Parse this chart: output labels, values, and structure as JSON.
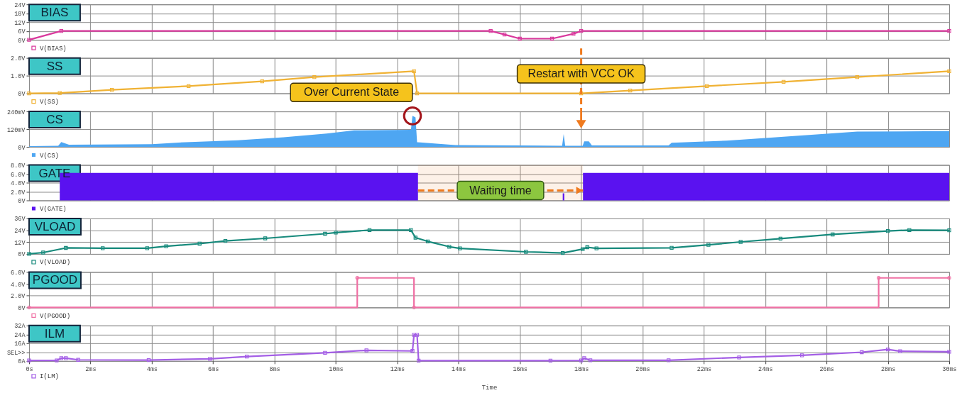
{
  "chart_data": [
    {
      "type": "line",
      "title": "BIAS",
      "x": [
        0,
        1.05,
        15.05,
        15.5,
        16.0,
        17.05,
        17.75,
        18.0,
        30
      ],
      "series": [
        {
          "name": "V(BIAS)",
          "color": "#d9389c",
          "values": [
            0,
            6,
            6,
            3.6,
            0.8,
            0.8,
            4.1,
            6,
            6
          ]
        }
      ],
      "xlim": [
        0,
        30
      ],
      "xticks": [
        0,
        2,
        4,
        6,
        8,
        10,
        12,
        14,
        16,
        18,
        20,
        22,
        24,
        26,
        28,
        30
      ],
      "ylim": [
        0,
        24
      ],
      "yticks": [
        {
          "value": 0,
          "label": "0V"
        },
        {
          "value": 6,
          "label": "6V"
        },
        {
          "value": 12,
          "label": "12V"
        },
        {
          "value": 18,
          "label": "18V"
        },
        {
          "value": 24,
          "label": "24V"
        }
      ],
      "grid": true,
      "legend": "bottom left",
      "marker": "square",
      "tick_labels": "y"
    },
    {
      "type": "line",
      "title": "SS",
      "x": [
        0,
        1.0,
        2.7,
        5.2,
        7.6,
        9.3,
        12.55,
        12.65,
        18.0,
        19.6,
        22.1,
        24.6,
        27.0,
        30
      ],
      "series": [
        {
          "name": "V(SS)",
          "color": "#f0b234",
          "values": [
            0,
            0.02,
            0.2,
            0.41,
            0.68,
            0.92,
            1.25,
            0,
            0,
            0.16,
            0.41,
            0.65,
            0.92,
            1.25
          ]
        }
      ],
      "xlim": [
        0,
        30
      ],
      "xticks": [
        0,
        2,
        4,
        6,
        8,
        10,
        12,
        14,
        16,
        18,
        20,
        22,
        24,
        26,
        28,
        30
      ],
      "ylim": [
        0,
        2
      ],
      "yticks": [
        {
          "value": 0,
          "label": "0V"
        },
        {
          "value": 1,
          "label": "1.0V"
        },
        {
          "value": 2,
          "label": "2.0V"
        }
      ],
      "grid": true,
      "legend": "bottom left",
      "marker": "square",
      "tick_labels": "y"
    },
    {
      "type": "area",
      "title": "CS",
      "x": [
        0,
        0.95,
        1.05,
        1.3,
        4.0,
        5.1,
        6.8,
        8.3,
        9.7,
        10.6,
        12.45,
        12.5,
        12.6,
        12.65,
        12.75,
        13.9,
        17.38,
        17.43,
        17.48,
        18.05,
        18.1,
        18.25,
        18.35,
        20.85,
        20.95,
        22.75,
        24.1,
        27.0,
        30
      ],
      "series": [
        {
          "name": "V(CS)",
          "color": "#4ea6f2",
          "values": [
            5,
            8,
            33,
            15,
            18,
            32,
            45,
            65,
            90,
            112,
            115,
            210,
            200,
            32,
            30,
            12,
            8,
            87,
            8,
            8,
            37,
            37,
            10,
            10,
            28,
            42,
            62,
            103,
            107
          ]
        }
      ],
      "xlim": [
        0,
        30
      ],
      "xticks": [
        0,
        2,
        4,
        6,
        8,
        10,
        12,
        14,
        16,
        18,
        20,
        22,
        24,
        26,
        28,
        30
      ],
      "ylim": [
        0,
        240
      ],
      "yticks": [
        {
          "value": 0,
          "label": "0V"
        },
        {
          "value": 120,
          "label": "120mV"
        },
        {
          "value": 240,
          "label": "240mV"
        }
      ],
      "grid": true,
      "legend": "bottom left",
      "tick_labels": "y",
      "annotations": [
        {
          "text": "Over Current State",
          "x": 12.5,
          "y": 210
        }
      ],
      "ref_lines": [
        {
          "axis": "x",
          "value": 18.0,
          "label": "Restart with VCC OK",
          "color": "#f07a1e",
          "line_style": "dashed"
        }
      ]
    },
    {
      "type": "area",
      "title": "GATE",
      "x": [
        0,
        1.0,
        1.0,
        12.68,
        12.68,
        17.4,
        17.4,
        17.45,
        17.45,
        18.06,
        18.06,
        30
      ],
      "series": [
        {
          "name": "V(GATE)",
          "color": "#5a12f0",
          "values": [
            0,
            0,
            6.2,
            6.2,
            0,
            0,
            1.6,
            1.6,
            0,
            0,
            6.2,
            6.2
          ]
        }
      ],
      "xlim": [
        0,
        30
      ],
      "xticks": [
        0,
        2,
        4,
        6,
        8,
        10,
        12,
        14,
        16,
        18,
        20,
        22,
        24,
        26,
        28,
        30
      ],
      "ylim": [
        0,
        8
      ],
      "yticks": [
        {
          "value": 0,
          "label": "0V"
        },
        {
          "value": 2,
          "label": "2.0V"
        },
        {
          "value": 4,
          "label": "4.0V"
        },
        {
          "value": 6,
          "label": "6.0V"
        },
        {
          "value": 8,
          "label": "8.0V"
        }
      ],
      "grid": true,
      "legend": "bottom left",
      "tick_labels": "y",
      "bands": [
        {
          "axis": "x",
          "from": 12.68,
          "to": 18.06,
          "label": "Waiting time",
          "color": "#f07a1e"
        }
      ]
    },
    {
      "type": "line",
      "title": "VLOAD",
      "x": [
        0,
        0.46,
        1.2,
        2.4,
        3.85,
        4.47,
        5.56,
        6.4,
        7.7,
        9.65,
        10.0,
        11.1,
        12.45,
        12.6,
        13.0,
        13.7,
        14.05,
        16.2,
        17.4,
        18.05,
        18.2,
        18.5,
        20.95,
        22.15,
        23.2,
        24.5,
        26.2,
        28.0,
        28.7,
        30
      ],
      "series": [
        {
          "name": "V(VLOAD)",
          "color": "#178a7c",
          "values": [
            0,
            1.4,
            6.1,
            5.8,
            5.8,
            7.8,
            10.4,
            13.2,
            15.8,
            20.5,
            21.7,
            24.2,
            24.2,
            16.5,
            12.7,
            7.3,
            5.6,
            2.1,
            1.0,
            4.9,
            6.8,
            5.6,
            6.2,
            9.2,
            12.2,
            15.5,
            19.8,
            23.3,
            24.2,
            24.0
          ]
        }
      ],
      "xlim": [
        0,
        30
      ],
      "xticks": [
        0,
        2,
        4,
        6,
        8,
        10,
        12,
        14,
        16,
        18,
        20,
        22,
        24,
        26,
        28,
        30
      ],
      "ylim": [
        0,
        36
      ],
      "yticks": [
        {
          "value": 0,
          "label": "0V"
        },
        {
          "value": 12,
          "label": "12V"
        },
        {
          "value": 24,
          "label": "24V"
        },
        {
          "value": 36,
          "label": "36V"
        }
      ],
      "grid": true,
      "legend": "bottom left",
      "marker": "square",
      "tick_labels": "y"
    },
    {
      "type": "step",
      "title": "PGOOD",
      "x": [
        0,
        10.7,
        12.55,
        27.7,
        30
      ],
      "series": [
        {
          "name": "V(PGOOD)",
          "color": "#f070a4",
          "values": [
            0,
            5,
            0,
            5,
            5
          ]
        }
      ],
      "xlim": [
        0,
        30
      ],
      "xticks": [
        0,
        2,
        4,
        6,
        8,
        10,
        12,
        14,
        16,
        18,
        20,
        22,
        24,
        26,
        28,
        30
      ],
      "ylim": [
        0,
        6
      ],
      "yticks": [
        {
          "value": 0,
          "label": "0V"
        },
        {
          "value": 2,
          "label": "2.0V"
        },
        {
          "value": 4,
          "label": "4.0V"
        },
        {
          "value": 6,
          "label": "6.0V"
        }
      ],
      "grid": true,
      "legend": "bottom left",
      "marker": "circle",
      "tick_labels": "y"
    },
    {
      "type": "line",
      "title": "ILM",
      "xlabel": "Time",
      "x": [
        0,
        0.9,
        1.05,
        1.2,
        1.6,
        3.9,
        5.9,
        7.1,
        9.65,
        11.0,
        12.5,
        12.55,
        12.65,
        12.7,
        17.0,
        18.0,
        18.1,
        18.3,
        20.85,
        23.15,
        25.2,
        27.15,
        28.0,
        28.4,
        30
      ],
      "series": [
        {
          "name": "I(LM)",
          "color": "#a45fe6",
          "values": [
            0.5,
            0.5,
            2.5,
            2.5,
            1.0,
            0.8,
            1.9,
            4.0,
            7.3,
            9.6,
            9.0,
            23.5,
            23.5,
            0.3,
            0.3,
            0.5,
            2.5,
            0.6,
            0.6,
            3.2,
            5.1,
            7.9,
            10.4,
            8.8,
            8.3
          ]
        }
      ],
      "xlim": [
        0,
        30
      ],
      "xticks": [
        {
          "value": 0,
          "label": "0s"
        },
        {
          "value": 2,
          "label": "2ms"
        },
        {
          "value": 4,
          "label": "4ms"
        },
        {
          "value": 6,
          "label": "6ms"
        },
        {
          "value": 8,
          "label": "8ms"
        },
        {
          "value": 10,
          "label": "10ms"
        },
        {
          "value": 12,
          "label": "12ms"
        },
        {
          "value": 14,
          "label": "14ms"
        },
        {
          "value": 16,
          "label": "16ms"
        },
        {
          "value": 18,
          "label": "18ms"
        },
        {
          "value": 20,
          "label": "20ms"
        },
        {
          "value": 22,
          "label": "22ms"
        },
        {
          "value": 24,
          "label": "24ms"
        },
        {
          "value": 26,
          "label": "26ms"
        },
        {
          "value": 28,
          "label": "28ms"
        },
        {
          "value": 30,
          "label": "30ms"
        }
      ],
      "ylim": [
        0,
        32
      ],
      "yticks": [
        {
          "value": 0,
          "label": "0A"
        },
        {
          "value": 8,
          "label": "SEL>>"
        },
        {
          "value": 16,
          "label": "16A"
        },
        {
          "value": 24,
          "label": "24A"
        },
        {
          "value": 32,
          "label": "32A"
        }
      ],
      "grid": true,
      "legend": "bottom left",
      "marker": "square"
    }
  ]
}
